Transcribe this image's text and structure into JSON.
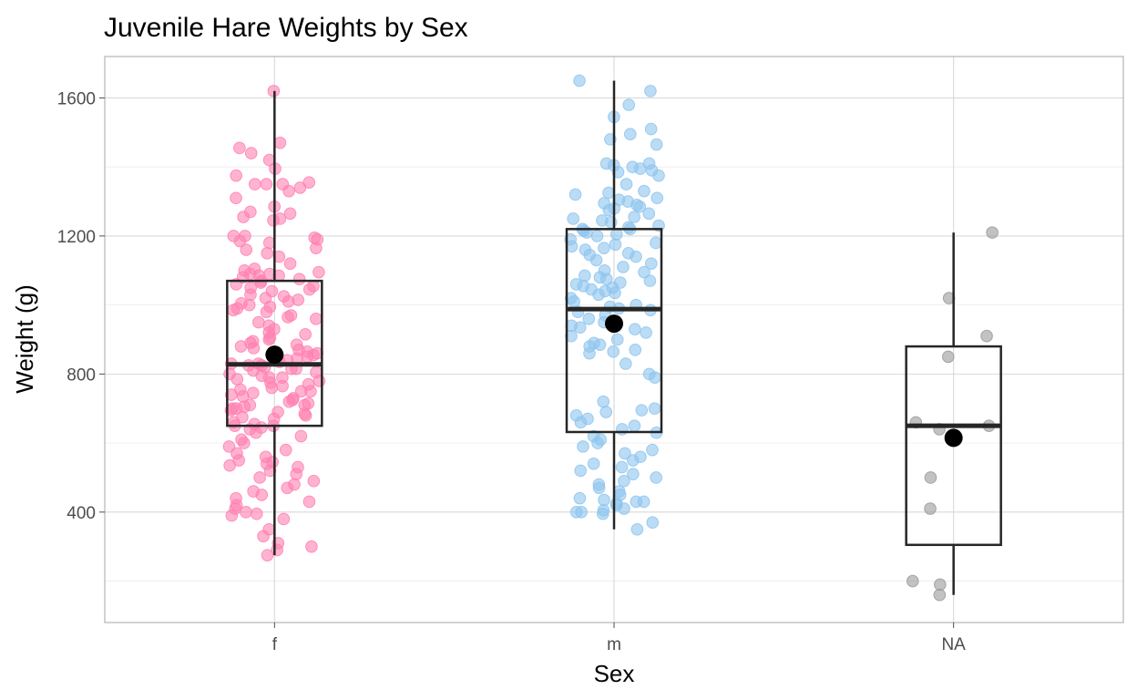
{
  "chart_data": {
    "type": "box",
    "title": "Juvenile Hare Weights by Sex",
    "xlabel": "Sex",
    "ylabel": "Weight (g)",
    "categories": [
      "f",
      "m",
      "NA"
    ],
    "ylim": [
      80,
      1720
    ],
    "yticks": [
      400,
      800,
      1200,
      1600
    ],
    "grid": true,
    "legend": "none",
    "colors": {
      "f": "#ff80b0",
      "m": "#8ec4ef",
      "NA": "#9a9a9a",
      "box": "#262626",
      "mean": "#000000",
      "grid_major": "#d9d9d9",
      "grid_minor": "#ececec",
      "panel_border": "#b3b3b3"
    },
    "boxes": [
      {
        "category": "f",
        "min": 275,
        "q1": 650,
        "median": 828,
        "q3": 1070,
        "max": 1620,
        "mean": 856
      },
      {
        "category": "m",
        "min": 350,
        "q1": 632,
        "median": 988,
        "q3": 1220,
        "max": 1650,
        "mean": 946
      },
      {
        "category": "NA",
        "min": 160,
        "q1": 305,
        "median": 650,
        "q3": 880,
        "max": 1210,
        "mean": 615
      }
    ],
    "points": [
      {
        "category": "f",
        "values": [
          1620,
          1470,
          1455,
          1440,
          1420,
          1395,
          1375,
          1355,
          1350,
          1350,
          1350,
          1340,
          1330,
          1310,
          1285,
          1270,
          1265,
          1255,
          1250,
          1245,
          1200,
          1200,
          1195,
          1190,
          1185,
          1180,
          1165,
          1160,
          1150,
          1140,
          1120,
          1105,
          1100,
          1095,
          1090,
          1090,
          1085,
          1085,
          1080,
          1075,
          1070,
          1065,
          1060,
          1055,
          1050,
          1045,
          1040,
          1030,
          1025,
          1020,
          1015,
          1010,
          1005,
          1000,
          995,
          990,
          985,
          980,
          970,
          965,
          960,
          950,
          940,
          930,
          920,
          915,
          905,
          900,
          895,
          890,
          885,
          880,
          875,
          870,
          865,
          860,
          855,
          850,
          845,
          840,
          835,
          830,
          830,
          825,
          825,
          820,
          815,
          815,
          810,
          805,
          800,
          795,
          790,
          790,
          785,
          780,
          775,
          770,
          765,
          760,
          755,
          750,
          750,
          745,
          740,
          735,
          730,
          725,
          720,
          715,
          710,
          710,
          705,
          700,
          700,
          695,
          690,
          685,
          680,
          675,
          670,
          660,
          655,
          650,
          650,
          645,
          640,
          630,
          620,
          610,
          600,
          590,
          580,
          570,
          560,
          550,
          545,
          540,
          535,
          530,
          520,
          510,
          500,
          490,
          480,
          470,
          460,
          450,
          440,
          430,
          420,
          410,
          400,
          395,
          390,
          380,
          350,
          330,
          310,
          300,
          290,
          275
        ]
      },
      {
        "category": "m",
        "values": [
          1650,
          1620,
          1580,
          1545,
          1510,
          1495,
          1480,
          1465,
          1410,
          1410,
          1405,
          1400,
          1395,
          1390,
          1385,
          1375,
          1350,
          1330,
          1325,
          1320,
          1310,
          1305,
          1300,
          1295,
          1290,
          1285,
          1280,
          1275,
          1265,
          1255,
          1250,
          1245,
          1240,
          1230,
          1225,
          1220,
          1220,
          1215,
          1210,
          1205,
          1200,
          1190,
          1180,
          1175,
          1170,
          1165,
          1160,
          1150,
          1145,
          1140,
          1130,
          1120,
          1110,
          1100,
          1095,
          1085,
          1080,
          1075,
          1070,
          1065,
          1060,
          1055,
          1050,
          1045,
          1040,
          1035,
          1030,
          1020,
          1010,
          1000,
          995,
          990,
          985,
          980,
          970,
          960,
          950,
          940,
          935,
          930,
          920,
          910,
          900,
          890,
          885,
          880,
          870,
          865,
          860,
          830,
          800,
          790,
          720,
          700,
          695,
          690,
          680,
          670,
          660,
          650,
          640,
          630,
          620,
          610,
          600,
          590,
          580,
          570,
          560,
          550,
          540,
          530,
          520,
          510,
          500,
          490,
          480,
          470,
          460,
          450,
          440,
          435,
          430,
          430,
          425,
          420,
          410,
          405,
          400,
          400,
          395,
          370,
          350
        ]
      },
      {
        "category": "NA",
        "values": [
          1210,
          1020,
          910,
          850,
          660,
          650,
          640,
          500,
          410,
          200,
          190,
          160
        ]
      }
    ]
  }
}
